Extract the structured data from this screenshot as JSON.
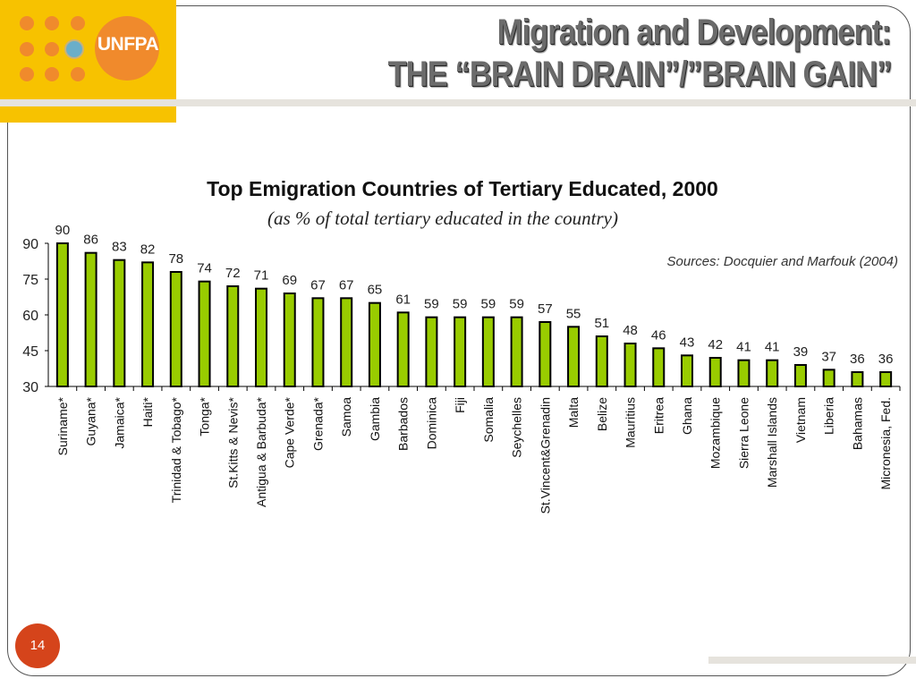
{
  "slide": {
    "logo_text": "UNFPA",
    "title_line1": "Migration and Development:",
    "title_line2": "THE “BRAIN DRAIN”/”BRAIN GAIN”",
    "page_number": "14",
    "colors": {
      "logo_background": "#f7c200",
      "logo_accent": "#f08a2c",
      "page_badge": "#d5441b",
      "bar_fill": "#99cc00",
      "bar_stroke": "#000000"
    }
  },
  "chart_data": {
    "type": "bar",
    "title": "Top Emigration Countries of Tertiary Educated, 2000",
    "subtitle": "(as % of total tertiary educated in the country)",
    "source": "Sources: Docquier and Marfouk (2004)",
    "xlabel": "",
    "ylabel": "",
    "ylim": [
      30,
      90
    ],
    "yticks": [
      30,
      45,
      60,
      75,
      90
    ],
    "grid": false,
    "categories": [
      "Suriname*",
      "Guyana*",
      "Jamaica*",
      "Haiti*",
      "Trinidad & Tobago*",
      "Tonga*",
      "St.Kitts & Nevis*",
      "Antigua & Barbuda*",
      "Cape Verde*",
      "Grenada*",
      "Samoa",
      "Gambia",
      "Barbados",
      "Dominica",
      "Fiji",
      "Somalia",
      "Seychelles",
      "St.Vincent&Grenadin",
      "Malta",
      "Belize",
      "Mauritius",
      "Eritrea",
      "Ghana",
      "Mozambique",
      "Sierra Leone",
      "Marshall Islands",
      "Vietnam",
      "Liberia",
      "Bahamas",
      "Micronesia, Fed."
    ],
    "values": [
      90,
      86,
      83,
      82,
      78,
      74,
      72,
      71,
      69,
      67,
      67,
      65,
      61,
      59,
      59,
      59,
      59,
      57,
      55,
      51,
      48,
      46,
      43,
      42,
      41,
      41,
      39,
      37,
      36,
      36
    ],
    "data_labels": [
      "90",
      "86",
      "83",
      "82",
      "78",
      "74",
      "72",
      "71",
      "69",
      "67",
      "67",
      "65",
      "61",
      "59",
      "59",
      "59",
      "59",
      "57",
      "55",
      "51",
      "48",
      "46",
      "43",
      "42",
      "41",
      "41",
      "39",
      "37",
      "36",
      "36"
    ]
  }
}
